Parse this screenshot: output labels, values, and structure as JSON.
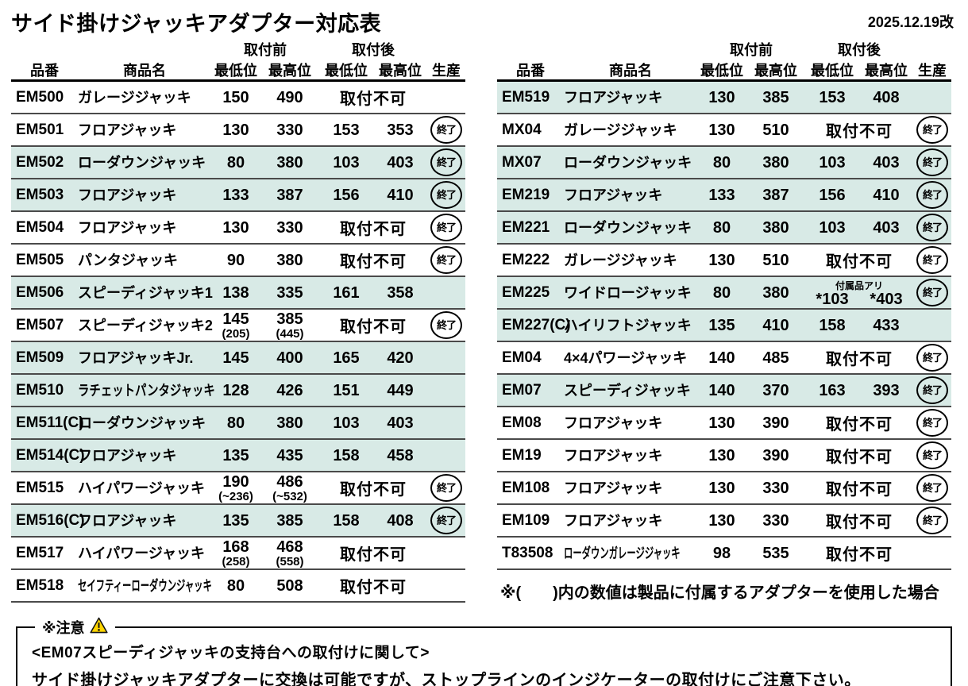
{
  "page": {
    "title": "サイド掛けジャッキアダプター対応表",
    "revision_date": "2025.12.19改"
  },
  "table_headers": {
    "part_no": "品番",
    "product_name": "商品名",
    "before": "取付前",
    "after": "取付後",
    "min": "最低位",
    "max": "最高位",
    "production": "生産"
  },
  "badges": {
    "discontinued": "終了",
    "not_installable": "取付不可"
  },
  "left_rows": [
    {
      "part": "EM500",
      "name": "ガレージジャッキ",
      "bmin": "150",
      "bmax": "490",
      "na": true,
      "end": false,
      "hl": false
    },
    {
      "part": "EM501",
      "name": "フロアジャッキ",
      "bmin": "130",
      "bmax": "330",
      "amin": "153",
      "amax": "353",
      "end": true,
      "hl": false
    },
    {
      "part": "EM502",
      "name": "ローダウンジャッキ",
      "bmin": "80",
      "bmax": "380",
      "amin": "103",
      "amax": "403",
      "end": true,
      "hl": true
    },
    {
      "part": "EM503",
      "name": "フロアジャッキ",
      "bmin": "133",
      "bmax": "387",
      "amin": "156",
      "amax": "410",
      "end": true,
      "hl": true
    },
    {
      "part": "EM504",
      "name": "フロアジャッキ",
      "bmin": "130",
      "bmax": "330",
      "na": true,
      "end": true,
      "hl": false
    },
    {
      "part": "EM505",
      "name": "パンタジャッキ",
      "bmin": "90",
      "bmax": "380",
      "na": true,
      "end": true,
      "hl": false
    },
    {
      "part": "EM506",
      "name": "スピーディジャッキ1",
      "bmin": "138",
      "bmax": "335",
      "amin": "161",
      "amax": "358",
      "end": false,
      "hl": true
    },
    {
      "part": "EM507",
      "name": "スピーディジャッキ2",
      "bmin": "145",
      "bmin_sub": "(205)",
      "bmax": "385",
      "bmax_sub": "(445)",
      "na": true,
      "end": true,
      "hl": false
    },
    {
      "part": "EM509",
      "name": "フロアジャッキJr.",
      "bmin": "145",
      "bmax": "400",
      "amin": "165",
      "amax": "420",
      "end": false,
      "hl": true
    },
    {
      "part": "EM510",
      "name": "ラチェットパンタジャッキ",
      "narrow": 1,
      "bmin": "128",
      "bmax": "426",
      "amin": "151",
      "amax": "449",
      "end": false,
      "hl": true
    },
    {
      "part": "EM511(C)",
      "name": "ローダウンジャッキ",
      "bmin": "80",
      "bmax": "380",
      "amin": "103",
      "amax": "403",
      "end": false,
      "hl": true
    },
    {
      "part": "EM514(C)",
      "name": "フロアジャッキ",
      "bmin": "135",
      "bmax": "435",
      "amin": "158",
      "amax": "458",
      "end": false,
      "hl": true
    },
    {
      "part": "EM515",
      "name": "ハイパワージャッキ",
      "bmin": "190",
      "bmin_sub": "(~236)",
      "bmax": "486",
      "bmax_sub": "(~532)",
      "na": true,
      "end": true,
      "hl": false
    },
    {
      "part": "EM516(C)",
      "name": "フロアジャッキ",
      "bmin": "135",
      "bmax": "385",
      "amin": "158",
      "amax": "408",
      "end": true,
      "hl": true
    },
    {
      "part": "EM517",
      "name": "ハイパワージャッキ",
      "bmin": "168",
      "bmin_sub": "(258)",
      "bmax": "468",
      "bmax_sub": "(558)",
      "na": true,
      "end": false,
      "hl": false
    },
    {
      "part": "EM518",
      "name": "セイフティーローダウンジャッキ",
      "narrow": 2,
      "bmin": "80",
      "bmax": "508",
      "na": true,
      "end": false,
      "hl": false
    }
  ],
  "right_rows": [
    {
      "part": "EM519",
      "name": "フロアジャッキ",
      "bmin": "130",
      "bmax": "385",
      "amin": "153",
      "amax": "408",
      "end": false,
      "hl": true
    },
    {
      "part": "MX04",
      "name": "ガレージジャッキ",
      "bmin": "130",
      "bmax": "510",
      "na": true,
      "end": true,
      "hl": false
    },
    {
      "part": "MX07",
      "name": "ローダウンジャッキ",
      "bmin": "80",
      "bmax": "380",
      "amin": "103",
      "amax": "403",
      "end": true,
      "hl": true
    },
    {
      "part": "EM219",
      "name": "フロアジャッキ",
      "bmin": "133",
      "bmax": "387",
      "amin": "156",
      "amax": "410",
      "end": true,
      "hl": true
    },
    {
      "part": "EM221",
      "name": "ローダウンジャッキ",
      "bmin": "80",
      "bmax": "380",
      "amin": "103",
      "amax": "403",
      "end": true,
      "hl": true
    },
    {
      "part": "EM222",
      "name": "ガレージジャッキ",
      "bmin": "130",
      "bmax": "510",
      "na": true,
      "end": true,
      "hl": false
    },
    {
      "part": "EM225",
      "name": "ワイドロージャッキ",
      "bmin": "80",
      "bmax": "380",
      "note": "付属品アリ",
      "amin": "*103",
      "amax": "*403",
      "end": true,
      "hl": true
    },
    {
      "part": "EM227(C)",
      "name": "ハイリフトジャッキ",
      "bmin": "135",
      "bmax": "410",
      "amin": "158",
      "amax": "433",
      "end": false,
      "hl": true
    },
    {
      "part": "EM04",
      "name": "4×4パワージャッキ",
      "bmin": "140",
      "bmax": "485",
      "na": true,
      "end": true,
      "hl": false
    },
    {
      "part": "EM07",
      "name": "スピーディジャッキ",
      "bmin": "140",
      "bmax": "370",
      "amin": "163",
      "amax": "393",
      "end": true,
      "hl": true
    },
    {
      "part": "EM08",
      "name": "フロアジャッキ",
      "bmin": "130",
      "bmax": "390",
      "na": true,
      "end": true,
      "hl": false
    },
    {
      "part": "EM19",
      "name": "フロアジャッキ",
      "bmin": "130",
      "bmax": "390",
      "na": true,
      "end": true,
      "hl": false
    },
    {
      "part": "EM108",
      "name": "フロアジャッキ",
      "bmin": "130",
      "bmax": "330",
      "na": true,
      "end": true,
      "hl": false
    },
    {
      "part": "EM109",
      "name": "フロアジャッキ",
      "bmin": "130",
      "bmax": "330",
      "na": true,
      "end": true,
      "hl": false
    },
    {
      "part": "T83508",
      "name": "ローダウンガレージジャッキ",
      "narrow": 2,
      "bmin": "98",
      "bmax": "535",
      "na": true,
      "end": false,
      "hl": false
    }
  ],
  "right_footnote": "※(　　)内の数値は製品に付属するアダプターを使用した場合",
  "notice": {
    "label": "※注意",
    "heading": "<EM07スピーディジャッキの支持台への取付けに関して>",
    "body": "サイド掛けジャッキアダプターに交換は可能ですが、ストップラインのインジケーターの取付けにご注意下さい。"
  },
  "colors": {
    "highlight_row": "#d8eae6",
    "warning_icon_fill": "#ffd500",
    "text": "#000000"
  }
}
